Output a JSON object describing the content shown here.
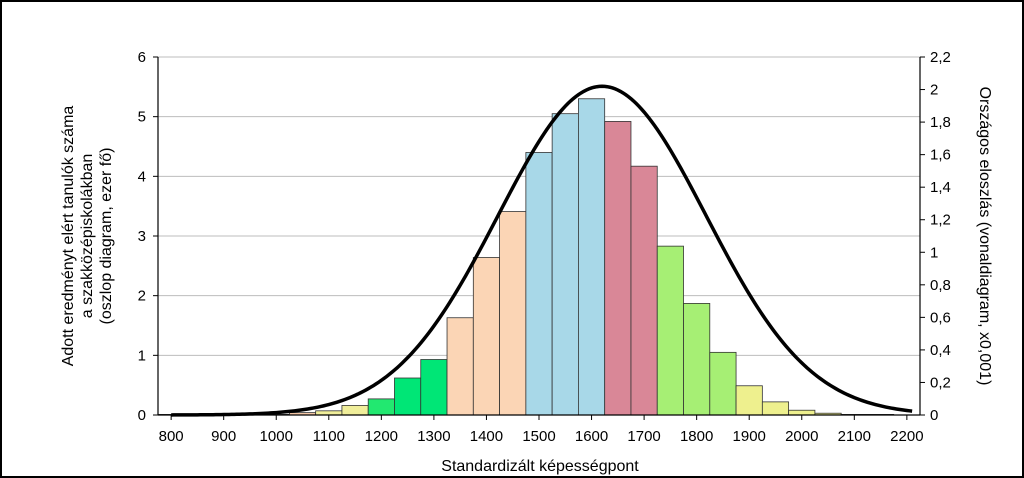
{
  "chart_data": {
    "type": "bar",
    "xlabel": "Standardizált képességpont",
    "ylabel_left": [
      "Adott eredményt elért tanulók száma",
      "a szakközépiskolákban",
      "(oszlop diagram, ezer fő)"
    ],
    "ylabel_right": "Országos eloszlás (vonaldiagram, x0,001)",
    "x_ticks": [
      "800",
      "900",
      "1000",
      "1100",
      "1200",
      "1300",
      "1400",
      "1500",
      "1600",
      "1700",
      "1800",
      "1900",
      "2000",
      "2100",
      "2200"
    ],
    "y_left_ticks": [
      "0",
      "1",
      "2",
      "3",
      "4",
      "5",
      "6"
    ],
    "y_right_ticks": [
      "0",
      "0,2",
      "0,4",
      "0,6",
      "0,8",
      "1",
      "1,2",
      "1,4",
      "1,6",
      "1,8",
      "2",
      "2,2"
    ],
    "xlim": [
      775,
      2225
    ],
    "ylim_left": [
      0,
      6
    ],
    "ylim_right": [
      0,
      2.2
    ],
    "grid": true,
    "bar_width": 50,
    "bars": [
      {
        "x": 800,
        "value": 0.01,
        "color": "#c9e6f1"
      },
      {
        "x": 850,
        "value": 0.01,
        "color": "#c9e6f1"
      },
      {
        "x": 900,
        "value": 0.01,
        "color": "#c9e6f1"
      },
      {
        "x": 950,
        "value": 0.01,
        "color": "#c9e6f1"
      },
      {
        "x": 1000,
        "value": 0.01,
        "color": "#c9e6f1"
      },
      {
        "x": 1050,
        "value": 0.04,
        "color": "#f5c7a6"
      },
      {
        "x": 1100,
        "value": 0.07,
        "color": "#f0ee9a"
      },
      {
        "x": 1150,
        "value": 0.16,
        "color": "#f0ee9a"
      },
      {
        "x": 1200,
        "value": 0.27,
        "color": "#22e870"
      },
      {
        "x": 1250,
        "value": 0.62,
        "color": "#00e676"
      },
      {
        "x": 1300,
        "value": 0.93,
        "color": "#00e676"
      },
      {
        "x": 1350,
        "value": 1.63,
        "color": "#fbd5b5"
      },
      {
        "x": 1400,
        "value": 2.64,
        "color": "#fbd5b5"
      },
      {
        "x": 1450,
        "value": 3.41,
        "color": "#fbd5b5"
      },
      {
        "x": 1500,
        "value": 4.4,
        "color": "#a8d8e8"
      },
      {
        "x": 1550,
        "value": 5.05,
        "color": "#a8d8e8"
      },
      {
        "x": 1600,
        "value": 5.3,
        "color": "#a8d8e8"
      },
      {
        "x": 1650,
        "value": 4.92,
        "color": "#d98797"
      },
      {
        "x": 1700,
        "value": 4.17,
        "color": "#d98797"
      },
      {
        "x": 1750,
        "value": 2.83,
        "color": "#a6ef74"
      },
      {
        "x": 1800,
        "value": 1.87,
        "color": "#a6ef74"
      },
      {
        "x": 1850,
        "value": 1.05,
        "color": "#a6ef74"
      },
      {
        "x": 1900,
        "value": 0.49,
        "color": "#eef08e"
      },
      {
        "x": 1950,
        "value": 0.22,
        "color": "#eef08e"
      },
      {
        "x": 2000,
        "value": 0.08,
        "color": "#eef08e"
      },
      {
        "x": 2050,
        "value": 0.03,
        "color": "#eef08e"
      },
      {
        "x": 2100,
        "value": 0.01,
        "color": "#eef08e"
      },
      {
        "x": 2150,
        "value": 0.01,
        "color": "#eef08e"
      }
    ],
    "curve": {
      "mean": 1620,
      "sd": 198,
      "peak": 2.02,
      "color": "#000000"
    }
  }
}
